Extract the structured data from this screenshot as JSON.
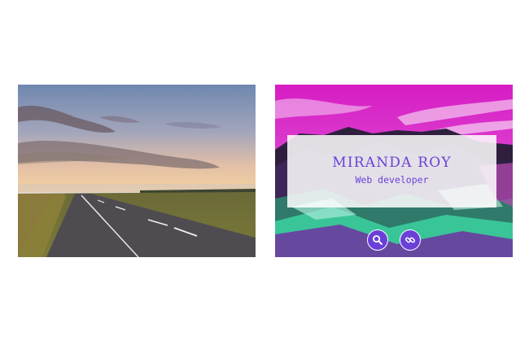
{
  "profile": {
    "name": "MIRANDA ROY",
    "role": "Web developer"
  },
  "buttons": [
    {
      "icon": "search-icon"
    },
    {
      "icon": "link-icon"
    }
  ],
  "colors": {
    "accent": "#6a40d8",
    "overlay": "#ffffff"
  }
}
